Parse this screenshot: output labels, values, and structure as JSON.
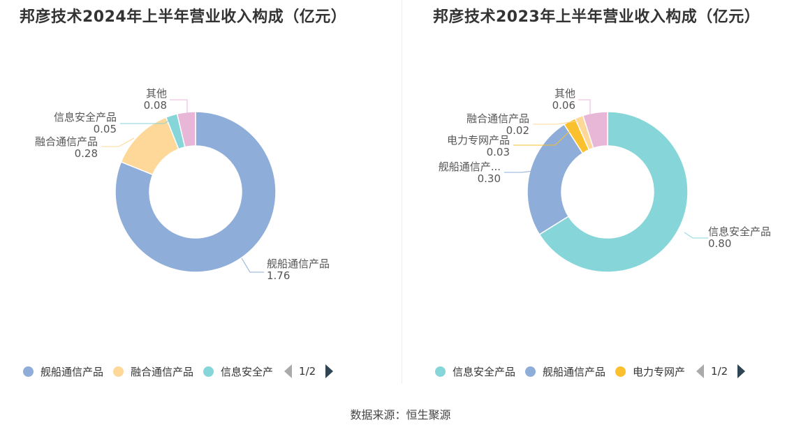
{
  "chart_data": [
    {
      "type": "pie",
      "title": "邦彦技术2024年上半年营业收入构成（亿元）",
      "series": [
        {
          "name": "舰船通信产品",
          "value": 1.76,
          "value_label": "1.76",
          "color": "#8eadd9"
        },
        {
          "name": "融合通信产品",
          "value": 0.28,
          "value_label": "0.28",
          "color": "#fdd898"
        },
        {
          "name": "信息安全产品",
          "value": 0.05,
          "value_label": "0.05",
          "color": "#86d6d9"
        },
        {
          "name": "其他",
          "value": 0.08,
          "value_label": "0.08",
          "color": "#e8b7d8"
        }
      ],
      "slice_labels": [
        "舰船通信产品",
        "融合通信产品",
        "信息安全产品",
        "其他"
      ],
      "legend": {
        "placement": "bottom",
        "items": [
          {
            "label": "舰船通信产品",
            "color": "#8eadd9"
          },
          {
            "label": "融合通信产品",
            "color": "#fdd898"
          },
          {
            "label": "信息安全产",
            "color": "#86d6d9"
          }
        ],
        "page": "1/2"
      }
    },
    {
      "type": "pie",
      "title": "邦彦技术2023年上半年营业收入构成（亿元）",
      "series": [
        {
          "name": "信息安全产品",
          "value": 0.8,
          "value_label": "0.80",
          "color": "#86d6d9"
        },
        {
          "name": "舰船通信产品",
          "value": 0.3,
          "value_label": "0.30",
          "color": "#8eadd9"
        },
        {
          "name": "电力专网产品",
          "value": 0.03,
          "value_label": "0.03",
          "color": "#fbc02d"
        },
        {
          "name": "融合通信产品",
          "value": 0.02,
          "value_label": "0.02",
          "color": "#fdd898"
        },
        {
          "name": "其他",
          "value": 0.06,
          "value_label": "0.06",
          "color": "#e8b7d8"
        }
      ],
      "slice_labels": [
        "信息安全产品",
        "舰船通信产...",
        "电力专网产品",
        "融合通信产品",
        "其他"
      ],
      "legend": {
        "placement": "bottom",
        "items": [
          {
            "label": "信息安全产品",
            "color": "#86d6d9"
          },
          {
            "label": "舰船通信产品",
            "color": "#8eadd9"
          },
          {
            "label": "电力专网产",
            "color": "#fbc02d"
          }
        ],
        "page": "1/2"
      }
    }
  ],
  "source": "数据来源：恒生聚源"
}
